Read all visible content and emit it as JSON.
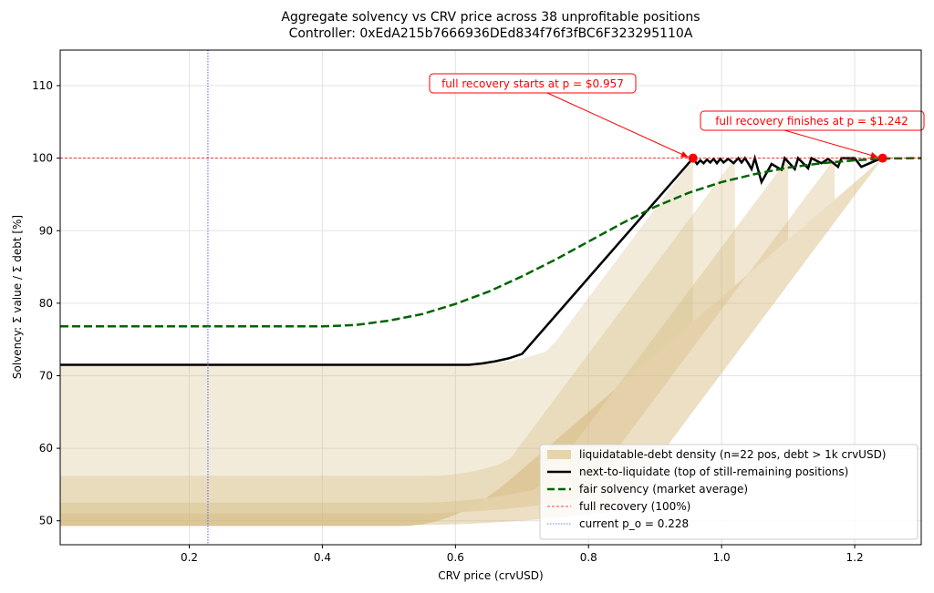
{
  "chart_data": {
    "type": "line",
    "title": "Aggregate solvency vs CRV price across 38 unprofitable positions",
    "subtitle": "Controller: 0xEdA215b7666936DEd834f76f3fBC6F323295110A",
    "xlabel": "CRV price (crvUSD)",
    "ylabel": "Solvency: Σ value / Σ debt   [%]",
    "xlim": [
      0.006,
      1.3
    ],
    "ylim": [
      46.7,
      114.9
    ],
    "xticks": [
      0.2,
      0.4,
      0.6,
      0.8,
      1.0,
      1.2
    ],
    "xtick_labels": [
      "0.2",
      "0.4",
      "0.6",
      "0.8",
      "1.0",
      "1.2"
    ],
    "yticks": [
      50,
      60,
      70,
      80,
      90,
      100,
      110
    ],
    "ytick_labels": [
      "50",
      "60",
      "70",
      "80",
      "90",
      "100",
      "110"
    ],
    "grid": true,
    "legend_position": "lower-right",
    "series": [
      {
        "name": "next-to-liquidate (top of still-remaining positions)",
        "color": "#000000",
        "style": "solid",
        "x": [
          0.006,
          0.62,
          0.64,
          0.66,
          0.68,
          0.7,
          0.957,
          0.963,
          0.968,
          0.973,
          0.978,
          0.983,
          0.988,
          0.993,
          0.998,
          1.003,
          1.01,
          1.018,
          1.025,
          1.03,
          1.035,
          1.04,
          1.045,
          1.05,
          1.06,
          1.075,
          1.09,
          1.095,
          1.11,
          1.115,
          1.13,
          1.135,
          1.15,
          1.16,
          1.175,
          1.18,
          1.2,
          1.21,
          1.23,
          1.242
        ],
        "y": [
          71.5,
          71.5,
          71.7,
          72.0,
          72.4,
          73.0,
          100.0,
          99.2,
          99.7,
          99.3,
          99.8,
          99.4,
          99.9,
          99.3,
          99.9,
          99.4,
          99.9,
          99.3,
          100.0,
          99.4,
          100.0,
          99.3,
          98.5,
          100.0,
          96.7,
          99.2,
          98.4,
          100.0,
          98.5,
          100.0,
          98.6,
          100.0,
          99.3,
          99.9,
          98.8,
          100.0,
          100.0,
          98.8,
          99.6,
          100.0
        ]
      },
      {
        "name": "fair solvency (market average)",
        "color": "#006400",
        "style": "dashed",
        "x": [
          0.006,
          0.4,
          0.45,
          0.5,
          0.55,
          0.6,
          0.65,
          0.7,
          0.75,
          0.8,
          0.85,
          0.9,
          0.95,
          1.0,
          1.05,
          1.1,
          1.15,
          1.2,
          1.25,
          1.3
        ],
        "y": [
          76.8,
          76.8,
          77.0,
          77.6,
          78.5,
          79.9,
          81.6,
          83.7,
          86.0,
          88.5,
          91.0,
          93.3,
          95.2,
          96.7,
          97.8,
          98.7,
          99.3,
          99.7,
          99.95,
          100.0
        ]
      },
      {
        "name": "full recovery (100%)",
        "color": "#ff0000",
        "style": "dashed-thin",
        "y_const": 100
      },
      {
        "name": "current p_o = 0.228",
        "color": "#5b5bff",
        "style": "dotted",
        "x_const": 0.228
      }
    ],
    "density": {
      "name": "liquidatable-debt density (n=22 pos, debt > 1k crvUSD)",
      "color": "#d4b87a",
      "bands": [
        {
          "flat_top": 71.5,
          "knee_x": 0.62,
          "end_x": 0.957,
          "opacity": 0.28
        },
        {
          "flat_top": 56.2,
          "knee_x": 0.56,
          "end_x": 1.02,
          "opacity": 0.3
        },
        {
          "flat_top": 52.5,
          "knee_x": 0.54,
          "end_x": 1.1,
          "opacity": 0.35
        },
        {
          "flat_top": 51.0,
          "knee_x": 0.53,
          "end_x": 1.17,
          "opacity": 0.35
        },
        {
          "flat_top": 49.4,
          "knee_x": 0.52,
          "end_x": 1.242,
          "opacity": 0.45
        }
      ],
      "floor": 49.3
    },
    "points": [
      {
        "x": 0.957,
        "y": 100,
        "label": "full recovery starts at p = $0.957"
      },
      {
        "x": 1.242,
        "y": 100,
        "label": "full recovery finishes at p = $1.242"
      }
    ],
    "legend": [
      {
        "label": "liquidatable-debt density (n=22 pos, debt > 1k crvUSD)",
        "kind": "patch",
        "color": "#e6d5aa"
      },
      {
        "label": "next-to-liquidate (top of still-remaining positions)",
        "kind": "solid",
        "color": "#000000"
      },
      {
        "label": "fair solvency (market average)",
        "kind": "dashed",
        "color": "#006400"
      },
      {
        "label": "full recovery (100%)",
        "kind": "dashed-thin",
        "color": "#ff0000"
      },
      {
        "label": "current p_o = 0.228",
        "kind": "dotted",
        "color": "#7777ff"
      }
    ]
  }
}
